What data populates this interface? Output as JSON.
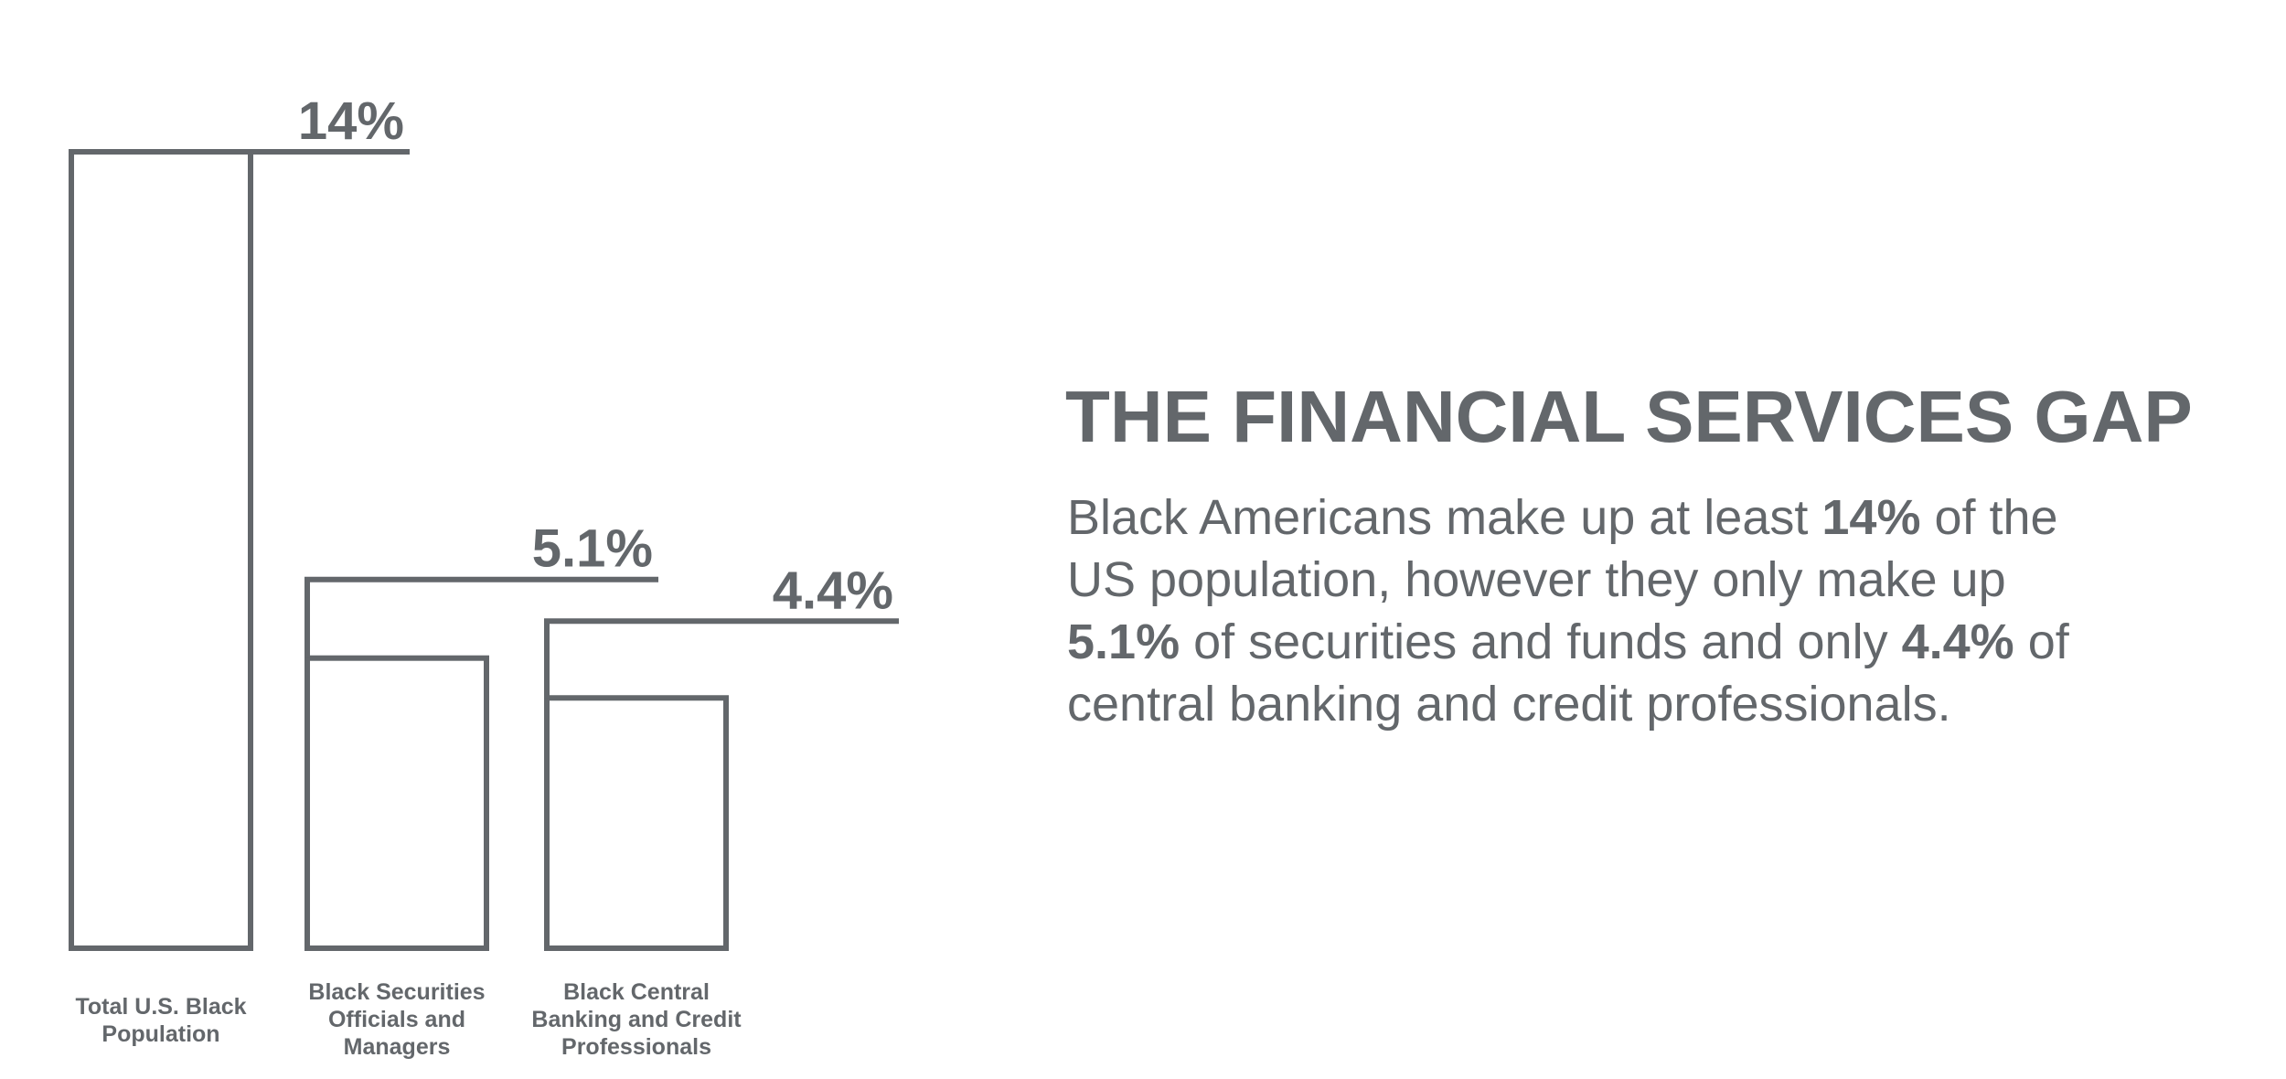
{
  "chart_data": {
    "type": "bar",
    "categories": [
      [
        "Total U.S. Black",
        "Population"
      ],
      [
        "Black Securities",
        "Officials and",
        "Managers"
      ],
      [
        "Black Central",
        "Banking and Credit",
        "Professionals"
      ]
    ],
    "values": [
      14,
      5.1,
      4.4
    ],
    "value_labels": [
      "14%",
      "5.1%",
      "4.4%"
    ],
    "ylim": [
      0,
      14
    ],
    "grid": false,
    "legend": "none",
    "color": "#63676b"
  },
  "text": {
    "title": "THE FINANCIAL SERVICES GAP",
    "description_lines": [
      [
        {
          "t": "Black Americans make up at least ",
          "b": false
        },
        {
          "t": "14%",
          "b": true
        },
        {
          "t": " of the",
          "b": false
        }
      ],
      [
        {
          "t": "US population, however they only make up",
          "b": false
        }
      ],
      [
        {
          "t": "5.1%",
          "b": true
        },
        {
          "t": " of securities and funds and only ",
          "b": false
        },
        {
          "t": "4.4%",
          "b": true
        },
        {
          "t": " of",
          "b": false
        }
      ],
      [
        {
          "t": "central banking and credit professionals.",
          "b": false
        }
      ]
    ]
  }
}
